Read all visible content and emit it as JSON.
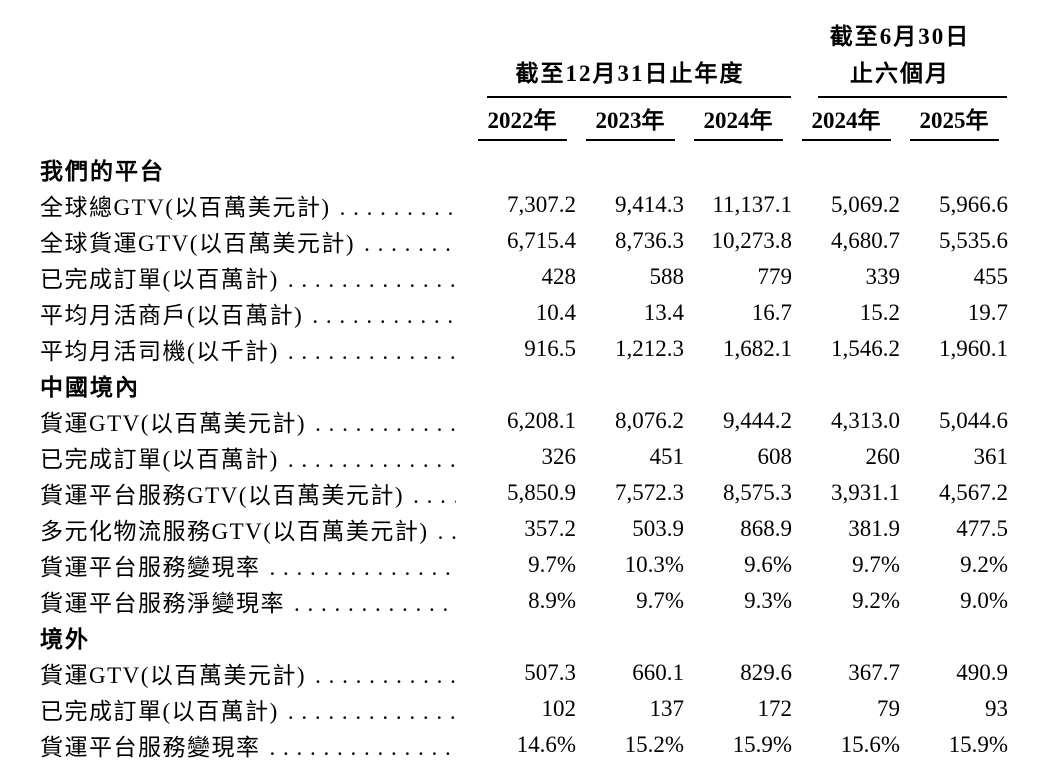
{
  "table": {
    "groups": {
      "annual": {
        "line1": "截至12月31日止年度"
      },
      "interim": {
        "line1": "截至6月30日",
        "line2": "止六個月"
      }
    },
    "columns": [
      "2022年",
      "2023年",
      "2024年",
      "2024年",
      "2025年"
    ],
    "rows": [
      {
        "type": "section",
        "label": "我們的平台"
      },
      {
        "type": "data",
        "label": "全球總GTV(以百萬美元計)",
        "values": [
          "7,307.2",
          "9,414.3",
          "11,137.1",
          "5,069.2",
          "5,966.6"
        ]
      },
      {
        "type": "data",
        "label": "全球貨運GTV(以百萬美元計)",
        "values": [
          "6,715.4",
          "8,736.3",
          "10,273.8",
          "4,680.7",
          "5,535.6"
        ]
      },
      {
        "type": "data",
        "label": "已完成訂單(以百萬計)",
        "values": [
          "428",
          "588",
          "779",
          "339",
          "455"
        ]
      },
      {
        "type": "data",
        "label": "平均月活商戶(以百萬計)",
        "values": [
          "10.4",
          "13.4",
          "16.7",
          "15.2",
          "19.7"
        ]
      },
      {
        "type": "data",
        "label": "平均月活司機(以千計)",
        "values": [
          "916.5",
          "1,212.3",
          "1,682.1",
          "1,546.2",
          "1,960.1"
        ]
      },
      {
        "type": "section",
        "label": "中國境內"
      },
      {
        "type": "data",
        "label": "貨運GTV(以百萬美元計)",
        "values": [
          "6,208.1",
          "8,076.2",
          "9,444.2",
          "4,313.0",
          "5,044.6"
        ]
      },
      {
        "type": "data",
        "label": "已完成訂單(以百萬計)",
        "values": [
          "326",
          "451",
          "608",
          "260",
          "361"
        ]
      },
      {
        "type": "data",
        "label": "貨運平台服務GTV(以百萬美元計)",
        "values": [
          "5,850.9",
          "7,572.3",
          "8,575.3",
          "3,931.1",
          "4,567.2"
        ]
      },
      {
        "type": "data",
        "label": "多元化物流服務GTV(以百萬美元計)",
        "values": [
          "357.2",
          "503.9",
          "868.9",
          "381.9",
          "477.5"
        ]
      },
      {
        "type": "data",
        "label": "貨運平台服務變現率",
        "values": [
          "9.7%",
          "10.3%",
          "9.6%",
          "9.7%",
          "9.2%"
        ]
      },
      {
        "type": "data",
        "label": "貨運平台服務淨變現率",
        "values": [
          "8.9%",
          "9.7%",
          "9.3%",
          "9.2%",
          "9.0%"
        ]
      },
      {
        "type": "section",
        "label": "境外"
      },
      {
        "type": "data",
        "label": "貨運GTV(以百萬美元計)",
        "values": [
          "507.3",
          "660.1",
          "829.6",
          "367.7",
          "490.9"
        ]
      },
      {
        "type": "data",
        "label": "已完成訂單(以百萬計)",
        "values": [
          "102",
          "137",
          "172",
          "79",
          "93"
        ]
      },
      {
        "type": "data",
        "label": "貨運平台服務變現率",
        "values": [
          "14.6%",
          "15.2%",
          "15.9%",
          "15.6%",
          "15.9%"
        ]
      }
    ]
  }
}
